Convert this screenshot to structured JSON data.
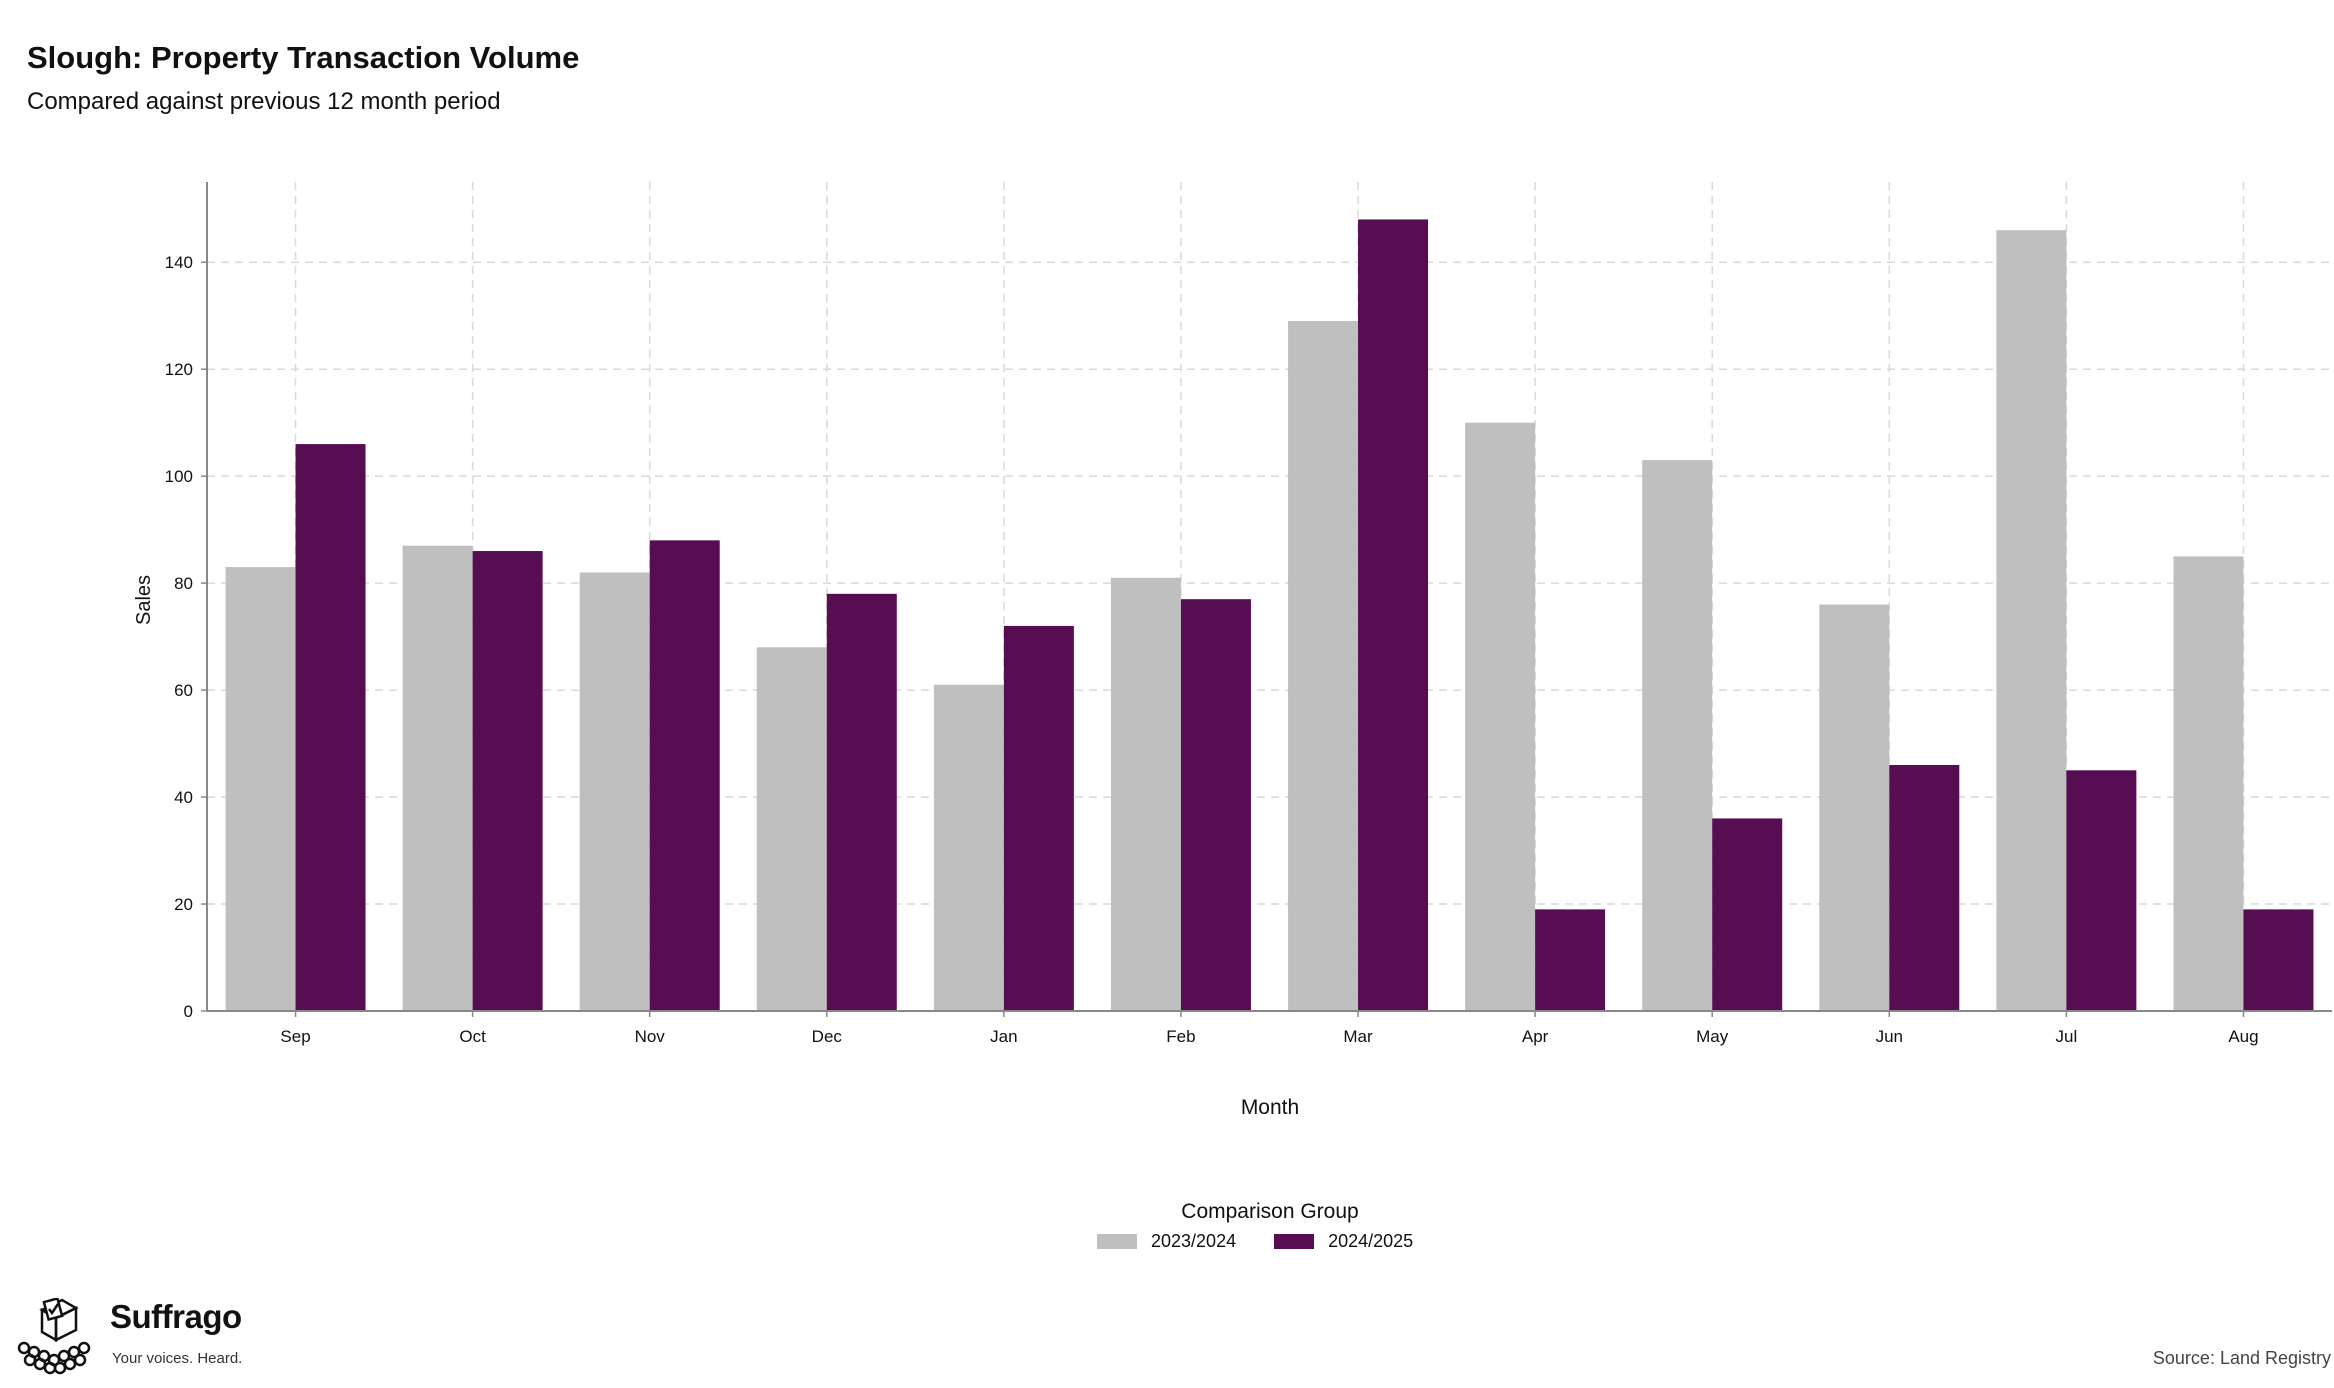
{
  "header": {
    "title": "Slough: Property Transaction Volume",
    "subtitle": "Compared against previous 12 month period"
  },
  "chart_data": {
    "type": "bar",
    "xlabel": "Month",
    "ylabel": "Sales",
    "categories": [
      "Sep",
      "Oct",
      "Nov",
      "Dec",
      "Jan",
      "Feb",
      "Mar",
      "Apr",
      "May",
      "Jun",
      "Jul",
      "Aug"
    ],
    "series": [
      {
        "name": "2023/2024",
        "color": "#bfbfbf",
        "values": [
          83,
          87,
          82,
          68,
          61,
          81,
          129,
          110,
          103,
          76,
          146,
          85
        ]
      },
      {
        "name": "2024/2025",
        "color": "#560d52",
        "values": [
          106,
          86,
          88,
          78,
          72,
          77,
          148,
          19,
          36,
          46,
          45,
          19
        ]
      }
    ],
    "ylim": [
      0,
      155
    ],
    "yticks": [
      0,
      20,
      40,
      60,
      80,
      100,
      120,
      140
    ],
    "grid": true,
    "legend": {
      "title": "Comparison Group",
      "placement": "bottom"
    }
  },
  "branding": {
    "name": "Suffrago",
    "tagline": "Your voices. Heard.",
    "icon": "ballot-box-icon"
  },
  "footer": {
    "source": "Source: Land Registry"
  }
}
